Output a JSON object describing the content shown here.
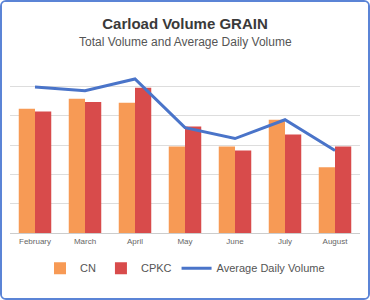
{
  "chart_data": {
    "type": "bar",
    "title": "Carload Volume GRAIN",
    "subtitle": "Total Volume and Average Daily Volume",
    "categories": [
      "February",
      "March",
      "April",
      "May",
      "June",
      "July",
      "August"
    ],
    "series": [
      {
        "name": "CN",
        "color": "#f79a55",
        "values": [
          4.24,
          4.58,
          4.44,
          2.95,
          2.95,
          3.86,
          2.24
        ]
      },
      {
        "name": "CPKC",
        "color": "#d84b4b",
        "values": [
          4.14,
          4.47,
          4.95,
          3.63,
          2.81,
          3.36,
          2.95
        ]
      },
      {
        "name": "Average Daily Volume",
        "type": "line",
        "color": "#4a74c9",
        "values": [
          4.98,
          4.85,
          5.25,
          3.59,
          3.22,
          3.86,
          2.81
        ]
      }
    ],
    "ylim": [
      0,
      6
    ],
    "yticks": [
      0,
      1,
      2,
      3,
      4,
      5,
      6
    ],
    "grid": true,
    "tick_labels": "x",
    "legend": "bottom"
  }
}
